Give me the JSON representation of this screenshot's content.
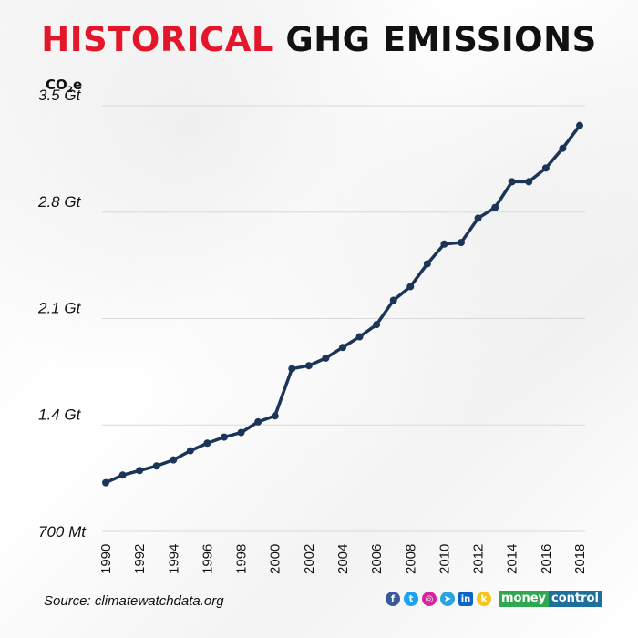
{
  "title": {
    "highlight": "HISTORICAL",
    "rest": "GHG EMISSIONS"
  },
  "unit": {
    "main": "CO",
    "sub": "2",
    "suffix": "e"
  },
  "source": "Source: climatewatchdata.org",
  "brand": {
    "part1": "money",
    "part2": "control"
  },
  "social": [
    {
      "name": "facebook-icon",
      "glyph": "f",
      "color": "#3b5998"
    },
    {
      "name": "twitter-icon",
      "glyph": "t",
      "color": "#1da1f2"
    },
    {
      "name": "instagram-icon",
      "glyph": "◎",
      "color": "#d6249f"
    },
    {
      "name": "telegram-icon",
      "glyph": "➤",
      "color": "#2aa3df"
    },
    {
      "name": "linkedin-icon",
      "glyph": "in",
      "color": "#0a66c2",
      "square": true
    },
    {
      "name": "koo-icon",
      "glyph": "k",
      "color": "#f5c518"
    }
  ],
  "colors": {
    "line": "#1b3558",
    "accent": "#e3162b",
    "grid": "#d9d9d9"
  },
  "chart_data": {
    "type": "line",
    "title": "HISTORICAL GHG EMISSIONS",
    "ylabel": "CO2e",
    "xlabel": "",
    "ylim": [
      0.7,
      3.5
    ],
    "yticks": [
      0.7,
      1.4,
      2.1,
      2.8,
      3.5
    ],
    "ytick_labels": [
      "700 Mt",
      "1.4 Gt",
      "2.1 Gt",
      "2.8 Gt",
      "3.5 Gt"
    ],
    "xlim": [
      1990,
      2018
    ],
    "xtick_labels": [
      "1990",
      "1992",
      "1994",
      "1996",
      "1998",
      "2000",
      "2002",
      "2004",
      "2006",
      "2008",
      "2010",
      "2012",
      "2014",
      "2016",
      "2018"
    ],
    "series": [
      {
        "name": "GHG emissions (Gt CO2e)",
        "x": [
          1990,
          1991,
          1992,
          1993,
          1994,
          1995,
          1996,
          1997,
          1998,
          1999,
          2000,
          2001,
          2002,
          2003,
          2004,
          2005,
          2006,
          2007,
          2008,
          2009,
          2010,
          2011,
          2012,
          2013,
          2014,
          2015,
          2016,
          2017,
          2018
        ],
        "values": [
          1.02,
          1.07,
          1.1,
          1.13,
          1.17,
          1.23,
          1.28,
          1.32,
          1.35,
          1.42,
          1.46,
          1.77,
          1.79,
          1.84,
          1.91,
          1.98,
          2.06,
          2.22,
          2.31,
          2.46,
          2.59,
          2.6,
          2.76,
          2.83,
          3.0,
          3.0,
          3.09,
          3.22,
          3.37
        ]
      }
    ]
  }
}
